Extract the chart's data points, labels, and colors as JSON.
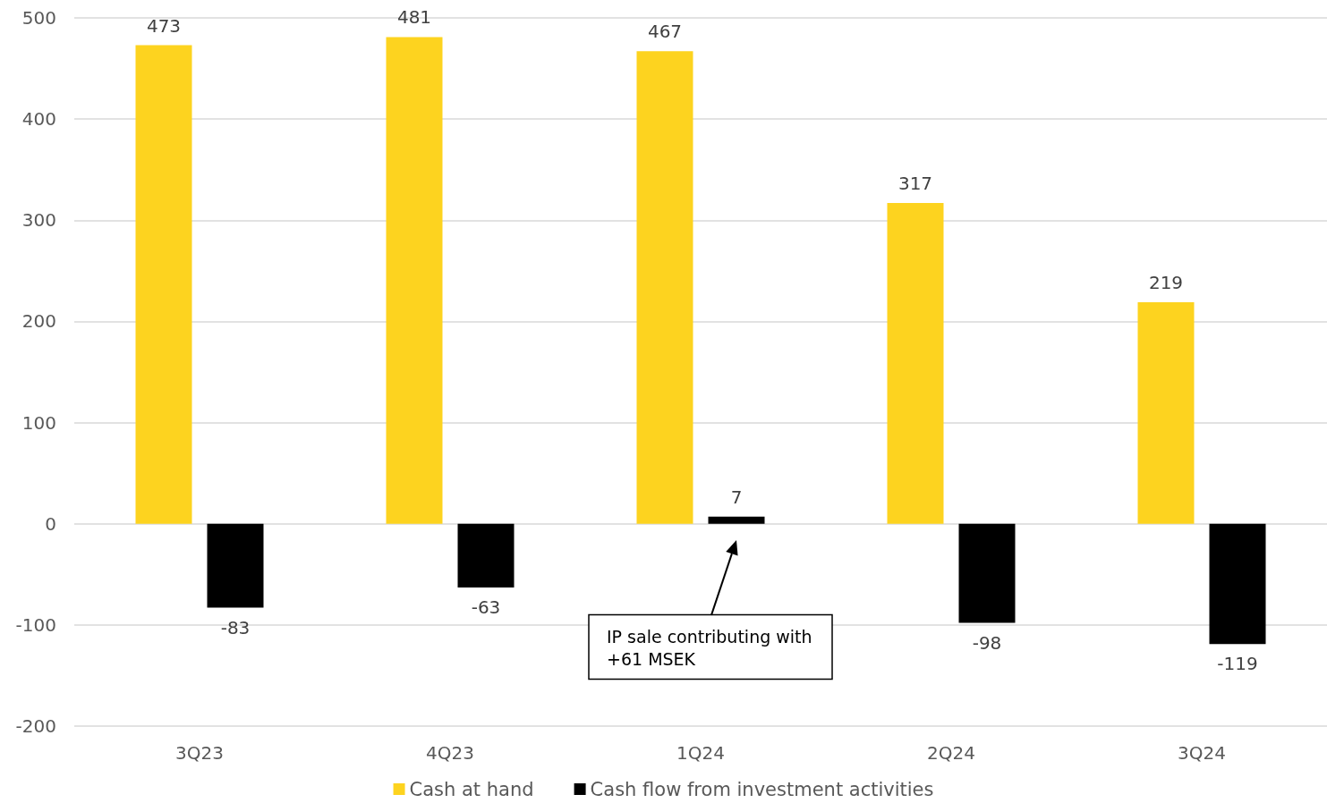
{
  "chart_data": {
    "type": "bar",
    "categories": [
      "3Q23",
      "4Q23",
      "1Q24",
      "2Q24",
      "3Q24"
    ],
    "series": [
      {
        "name": "Cash at hand",
        "color": "#fdd31f",
        "values": [
          473,
          481,
          467,
          317,
          219
        ]
      },
      {
        "name": "Cash flow from investment activities",
        "color": "#000000",
        "values": [
          -83,
          -63,
          7,
          -98,
          -119
        ]
      }
    ],
    "ylim": [
      -200,
      500
    ],
    "yticks": [
      -200,
      -100,
      0,
      100,
      200,
      300,
      400,
      500
    ],
    "grid": "y",
    "legend": "bottom",
    "data_labels": true,
    "annotations": [
      "IP sale contributing with\n+61 MSEK"
    ]
  }
}
